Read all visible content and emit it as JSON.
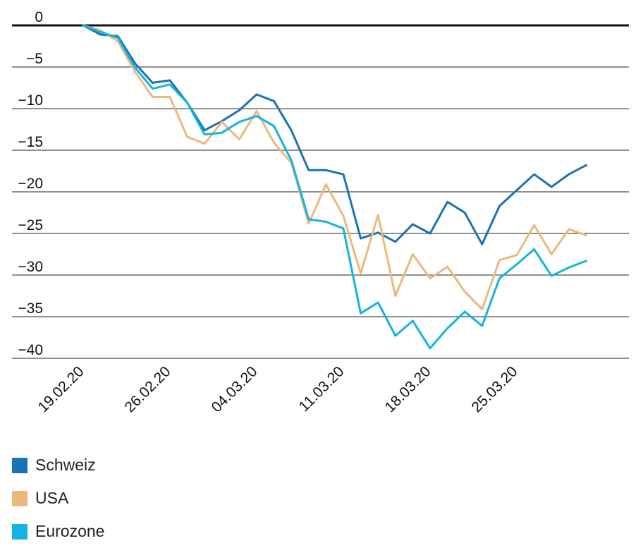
{
  "chart_data": {
    "type": "line",
    "title": "",
    "xlabel": "",
    "ylabel": "",
    "ylim": [
      -40,
      0
    ],
    "yticks": [
      0,
      -5,
      -10,
      -15,
      -20,
      -25,
      -30,
      -35,
      -40
    ],
    "ytick_labels": [
      "0",
      "−5",
      "−10",
      "−15",
      "−20",
      "−25",
      "−30",
      "−35",
      "−40"
    ],
    "xtick_labels": [
      "19.02.20",
      "26.02.20",
      "04.03.20",
      "11.03.20",
      "18.03.20",
      "25.03.20"
    ],
    "x": [
      "19.02.20",
      "20.02.20",
      "21.02.20",
      "24.02.20",
      "25.02.20",
      "26.02.20",
      "27.02.20",
      "28.02.20",
      "02.03.20",
      "03.03.20",
      "04.03.20",
      "05.03.20",
      "06.03.20",
      "09.03.20",
      "10.03.20",
      "11.03.20",
      "12.03.20",
      "13.03.20",
      "16.03.20",
      "17.03.20",
      "18.03.20",
      "19.03.20",
      "20.03.20",
      "23.03.20",
      "24.03.20",
      "25.03.20",
      "26.03.20",
      "27.03.20",
      "30.03.20",
      "31.03.20"
    ],
    "series": [
      {
        "name": "Schweiz",
        "color": "#1a73b5",
        "values": [
          0,
          -1.1,
          -1.3,
          -4.6,
          -6.9,
          -6.6,
          -9.3,
          -12.6,
          -11.5,
          -10.2,
          -8.3,
          -9.1,
          -12.6,
          -17.4,
          -17.4,
          -17.9,
          -25.6,
          -24.9,
          -26.0,
          -23.9,
          -25.0,
          -21.2,
          -22.5,
          -26.3,
          -21.7,
          -19.8,
          -17.9,
          -19.4,
          -17.9,
          -16.8
        ]
      },
      {
        "name": "USA",
        "color": "#ecb97c",
        "values": [
          0,
          -0.6,
          -1.9,
          -5.6,
          -8.6,
          -8.6,
          -13.4,
          -14.2,
          -11.6,
          -13.7,
          -10.3,
          -14.1,
          -16.5,
          -23.8,
          -19.1,
          -22.9,
          -29.8,
          -22.8,
          -32.5,
          -27.5,
          -30.4,
          -29.0,
          -32.0,
          -34.1,
          -28.2,
          -27.6,
          -24.0,
          -27.5,
          -24.5,
          -25.2
        ]
      },
      {
        "name": "Eurozone",
        "color": "#13b4df",
        "values": [
          0,
          -0.8,
          -1.5,
          -5.1,
          -7.6,
          -7.1,
          -9.3,
          -13.1,
          -12.9,
          -11.6,
          -10.9,
          -12.1,
          -16.2,
          -23.3,
          -23.6,
          -24.4,
          -34.6,
          -33.3,
          -37.3,
          -35.5,
          -38.8,
          -36.4,
          -34.4,
          -36.1,
          -30.4,
          -28.7,
          -26.9,
          -30.1,
          -29.1,
          -28.3
        ]
      }
    ],
    "grid": true,
    "legend_position": "bottom-left"
  }
}
